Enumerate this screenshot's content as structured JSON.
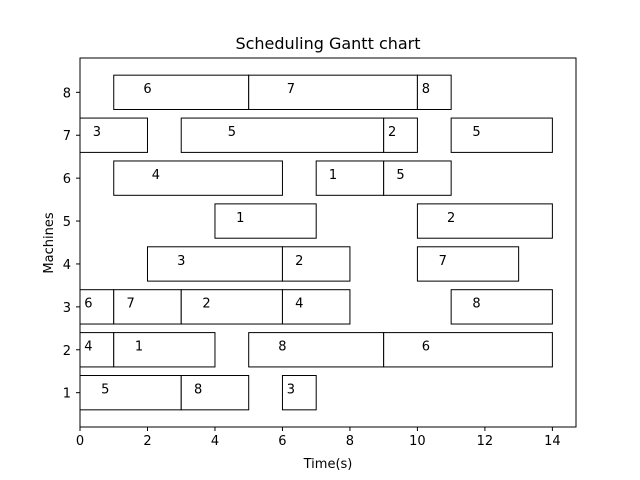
{
  "chart_data": {
    "type": "gantt",
    "title": "Scheduling Gantt chart",
    "xlabel": "Time(s)",
    "ylabel": "Machines",
    "xlim": [
      0,
      14.7
    ],
    "ylim": [
      0.2,
      8.8
    ],
    "xticks": [
      0,
      2,
      4,
      6,
      8,
      10,
      12,
      14
    ],
    "yticks": [
      1,
      2,
      3,
      4,
      5,
      6,
      7,
      8
    ],
    "bar_height": 0.8,
    "grid": false,
    "colors": {
      "bar_fill": "#ffffff",
      "bar_edge": "#000000"
    },
    "tasks": [
      {
        "machine": 1,
        "job": "5",
        "start": 0,
        "end": 3
      },
      {
        "machine": 1,
        "job": "8",
        "start": 3,
        "end": 5
      },
      {
        "machine": 1,
        "job": "3",
        "start": 6,
        "end": 7
      },
      {
        "machine": 2,
        "job": "4",
        "start": 0,
        "end": 1
      },
      {
        "machine": 2,
        "job": "1",
        "start": 1,
        "end": 4
      },
      {
        "machine": 2,
        "job": "8",
        "start": 5,
        "end": 9
      },
      {
        "machine": 2,
        "job": "6",
        "start": 9,
        "end": 14
      },
      {
        "machine": 3,
        "job": "6",
        "start": 0,
        "end": 1
      },
      {
        "machine": 3,
        "job": "7",
        "start": 1,
        "end": 3
      },
      {
        "machine": 3,
        "job": "2",
        "start": 3,
        "end": 6
      },
      {
        "machine": 3,
        "job": "4",
        "start": 6,
        "end": 8
      },
      {
        "machine": 3,
        "job": "8",
        "start": 11,
        "end": 14
      },
      {
        "machine": 4,
        "job": "3",
        "start": 2,
        "end": 6
      },
      {
        "machine": 4,
        "job": "2",
        "start": 6,
        "end": 8
      },
      {
        "machine": 4,
        "job": "7",
        "start": 10,
        "end": 13
      },
      {
        "machine": 5,
        "job": "1",
        "start": 4,
        "end": 7
      },
      {
        "machine": 5,
        "job": "2",
        "start": 10,
        "end": 14
      },
      {
        "machine": 6,
        "job": "4",
        "start": 1,
        "end": 6
      },
      {
        "machine": 6,
        "job": "1",
        "start": 7,
        "end": 9
      },
      {
        "machine": 6,
        "job": "5",
        "start": 9,
        "end": 11
      },
      {
        "machine": 7,
        "job": "3",
        "start": 0,
        "end": 2
      },
      {
        "machine": 7,
        "job": "5",
        "start": 3,
        "end": 9
      },
      {
        "machine": 7,
        "job": "2",
        "start": 9,
        "end": 10
      },
      {
        "machine": 7,
        "job": "5",
        "start": 11,
        "end": 14
      },
      {
        "machine": 8,
        "job": "6",
        "start": 1,
        "end": 5
      },
      {
        "machine": 8,
        "job": "7",
        "start": 5,
        "end": 10
      },
      {
        "machine": 8,
        "job": "8",
        "start": 10,
        "end": 11
      }
    ]
  }
}
